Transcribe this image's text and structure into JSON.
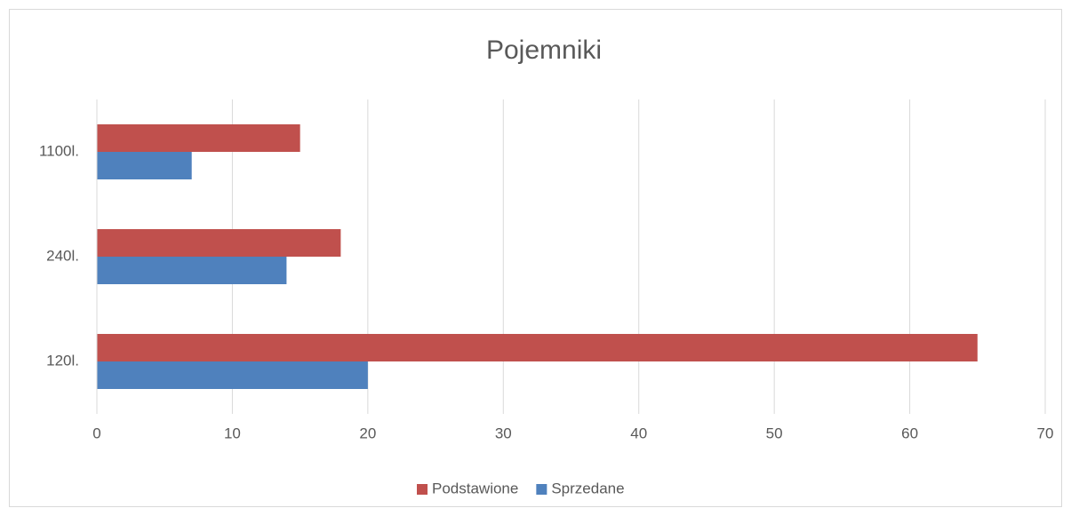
{
  "chart_data": {
    "type": "bar",
    "orientation": "horizontal",
    "title": "Pojemniki",
    "categories": [
      "120l.",
      "240l.",
      "1100l."
    ],
    "series": [
      {
        "name": "Podstawione",
        "color": "#c0504d",
        "values": [
          65,
          18,
          15
        ]
      },
      {
        "name": "Sprzedane",
        "color": "#4f81bd",
        "values": [
          20,
          14,
          7
        ]
      }
    ],
    "xlim": [
      0,
      70
    ],
    "xticks": [
      0,
      10,
      20,
      30,
      40,
      50,
      60,
      70
    ],
    "grid": true,
    "legend": "bottom"
  }
}
